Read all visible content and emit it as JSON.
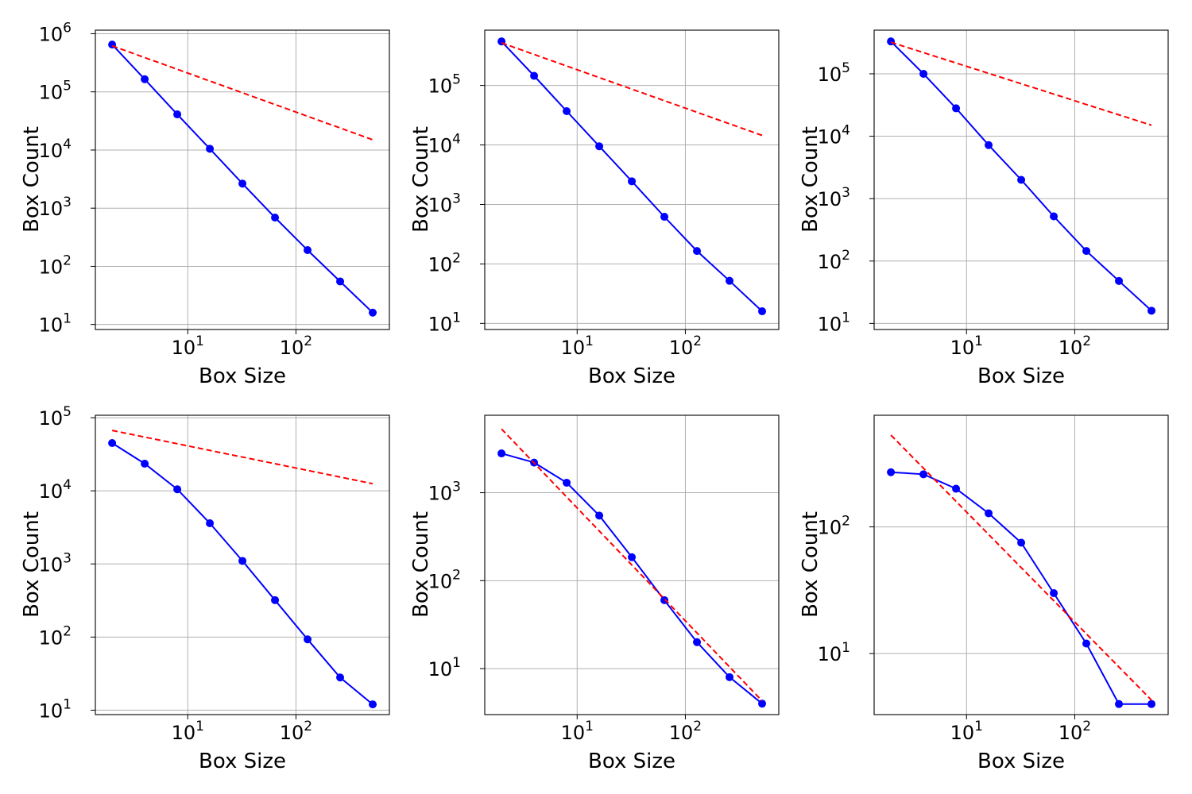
{
  "chart_data": [
    {
      "type": "line",
      "title": "",
      "xlabel": "Box Size",
      "ylabel": "Box Count",
      "xscale": "log",
      "yscale": "log",
      "xlim": [
        1.4,
        730
      ],
      "ylim": [
        8.2,
        1150000
      ],
      "grid": true,
      "x_tick_labels": [
        "10^1",
        "10^2"
      ],
      "y_tick_labels": [
        "10^1",
        "10^2",
        "10^3",
        "10^4",
        "10^5",
        "10^6"
      ],
      "series": [
        {
          "style": "blue-line-circle-markers",
          "color": "#0000ff",
          "x": [
            2,
            4,
            8,
            16,
            32,
            64,
            128,
            256,
            512
          ],
          "y": [
            650000,
            165000,
            41000,
            10500,
            2650,
            690,
            190,
            55,
            16
          ]
        },
        {
          "style": "red-dashed-fit",
          "color": "#ff0000",
          "x": [
            2,
            512
          ],
          "y": [
            620000,
            15000
          ]
        }
      ]
    },
    {
      "type": "line",
      "title": "",
      "xlabel": "Box Size",
      "ylabel": "Box Count",
      "xscale": "log",
      "yscale": "log",
      "xlim": [
        1.4,
        730
      ],
      "ylim": [
        7.9,
        850000
      ],
      "grid": true,
      "x_tick_labels": [
        "10^1",
        "10^2"
      ],
      "y_tick_labels": [
        "10^1",
        "10^2",
        "10^3",
        "10^4",
        "10^5"
      ],
      "series": [
        {
          "style": "blue-line-circle-markers",
          "color": "#0000ff",
          "x": [
            2,
            4,
            8,
            16,
            32,
            64,
            128,
            256,
            512
          ],
          "y": [
            550000,
            145000,
            37000,
            9500,
            2450,
            620,
            165,
            52,
            16
          ]
        },
        {
          "style": "red-dashed-fit",
          "color": "#ff0000",
          "x": [
            2,
            512
          ],
          "y": [
            520000,
            14500
          ]
        }
      ]
    },
    {
      "type": "line",
      "title": "",
      "xlabel": "Box Size",
      "ylabel": "Box Count",
      "xscale": "log",
      "yscale": "log",
      "xlim": [
        1.4,
        730
      ],
      "ylim": [
        8.0,
        500000
      ],
      "grid": true,
      "x_tick_labels": [
        "10^1",
        "10^2"
      ],
      "y_tick_labels": [
        "10^1",
        "10^2",
        "10^3",
        "10^4",
        "10^5"
      ],
      "series": [
        {
          "style": "blue-line-circle-markers",
          "color": "#0000ff",
          "x": [
            2,
            4,
            8,
            16,
            32,
            64,
            128,
            256,
            512
          ],
          "y": [
            330000,
            100000,
            28000,
            7200,
            2000,
            520,
            145,
            48,
            16
          ]
        },
        {
          "style": "red-dashed-fit",
          "color": "#ff0000",
          "x": [
            2,
            512
          ],
          "y": [
            320000,
            15000
          ]
        }
      ]
    },
    {
      "type": "line",
      "title": "",
      "xlabel": "Box Size",
      "ylabel": "Box Count",
      "xscale": "log",
      "yscale": "log",
      "xlim": [
        1.4,
        730
      ],
      "ylim": [
        8.7,
        108000
      ],
      "grid": true,
      "x_tick_labels": [
        "10^1",
        "10^2"
      ],
      "y_tick_labels": [
        "10^1",
        "10^2",
        "10^3",
        "10^4",
        "10^5"
      ],
      "series": [
        {
          "style": "blue-line-circle-markers",
          "color": "#0000ff",
          "x": [
            2,
            4,
            8,
            16,
            32,
            64,
            128,
            256,
            512
          ],
          "y": [
            45000,
            23500,
            10500,
            3600,
            1100,
            320,
            93,
            28,
            12
          ]
        },
        {
          "style": "red-dashed-fit",
          "color": "#ff0000",
          "x": [
            2,
            512
          ],
          "y": [
            67000,
            12500
          ]
        }
      ]
    },
    {
      "type": "line",
      "title": "",
      "xlabel": "Box Size",
      "ylabel": "Box Count",
      "xscale": "log",
      "yscale": "log",
      "xlim": [
        1.4,
        730
      ],
      "ylim": [
        3.0,
        7600
      ],
      "grid": true,
      "x_tick_labels": [
        "10^1",
        "10^2"
      ],
      "y_tick_labels": [
        "10^1",
        "10^2",
        "10^3"
      ],
      "series": [
        {
          "style": "blue-line-circle-markers",
          "color": "#0000ff",
          "x": [
            2,
            4,
            8,
            16,
            32,
            64,
            128,
            256,
            512
          ],
          "y": [
            2800,
            2200,
            1300,
            550,
            185,
            60,
            20,
            8,
            4
          ]
        },
        {
          "style": "red-dashed-fit",
          "color": "#ff0000",
          "x": [
            2,
            512
          ],
          "y": [
            5300,
            4.3
          ]
        }
      ]
    },
    {
      "type": "line",
      "title": "",
      "xlabel": "Box Size",
      "ylabel": "Box Count",
      "xscale": "log",
      "yscale": "log",
      "xlim": [
        1.4,
        730
      ],
      "ylim": [
        3.3,
        760
      ],
      "grid": true,
      "x_tick_labels": [
        "10^1",
        "10^2"
      ],
      "y_tick_labels": [
        "10^1",
        "10^2"
      ],
      "series": [
        {
          "style": "blue-line-circle-markers",
          "color": "#0000ff",
          "x": [
            2,
            4,
            8,
            16,
            32,
            64,
            128,
            256,
            512
          ],
          "y": [
            270,
            260,
            200,
            128,
            75,
            30,
            12,
            4,
            4
          ]
        },
        {
          "style": "red-dashed-fit",
          "color": "#ff0000",
          "x": [
            2,
            512
          ],
          "y": [
            530,
            4.3
          ]
        }
      ]
    }
  ]
}
